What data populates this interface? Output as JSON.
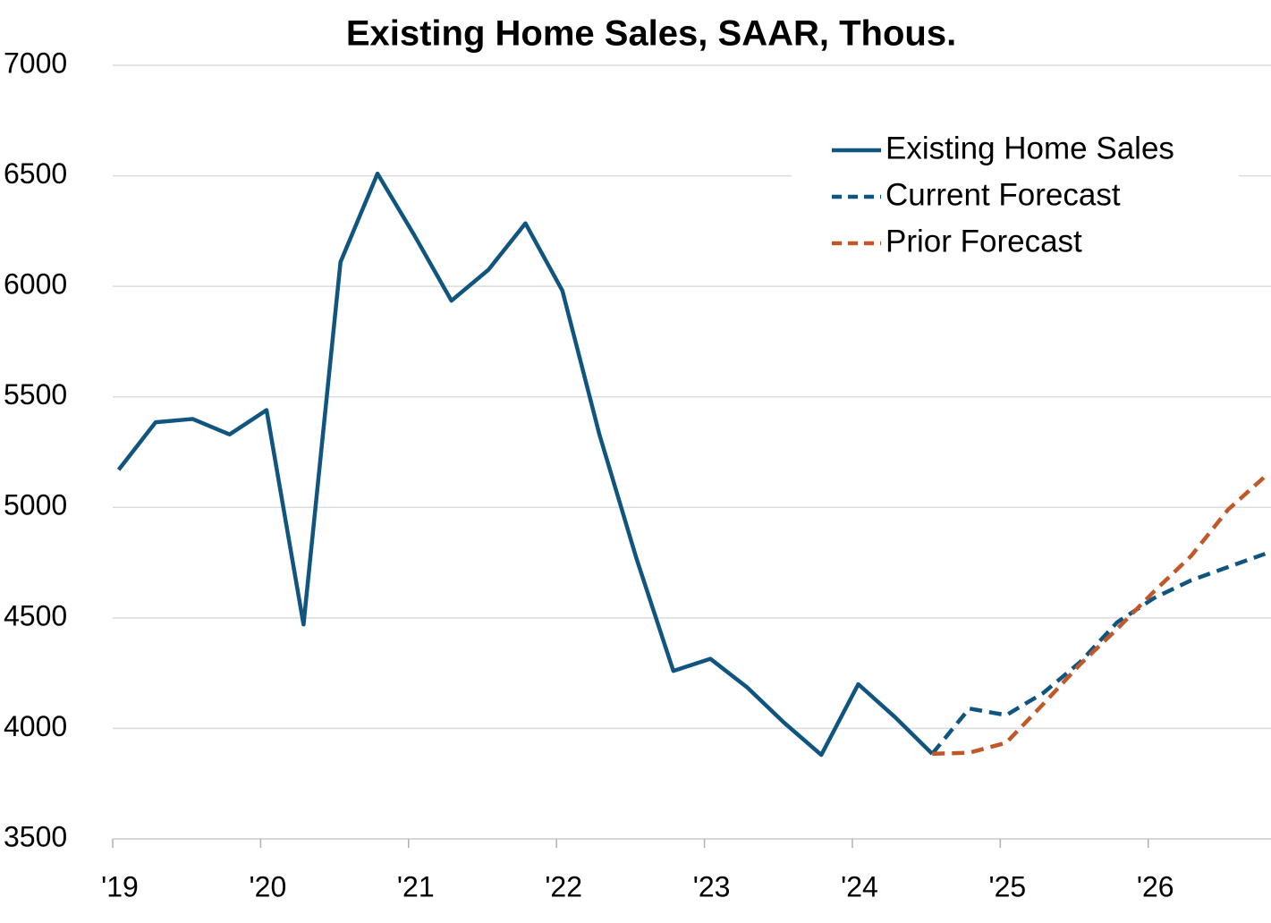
{
  "chart_data": {
    "type": "line",
    "title": "Existing Home Sales, SAAR, Thous.",
    "x": [
      2019.04,
      2019.29,
      2019.54,
      2019.79,
      2020.04,
      2020.29,
      2020.54,
      2020.79,
      2021.04,
      2021.29,
      2021.54,
      2021.79,
      2022.04,
      2022.29,
      2022.54,
      2022.79,
      2023.04,
      2023.29,
      2023.54,
      2023.79,
      2024.04,
      2024.29,
      2024.54,
      2024.79,
      2025.04,
      2025.29,
      2025.54,
      2025.79,
      2026.04,
      2026.29,
      2026.54,
      2026.79
    ],
    "series": [
      {
        "name": "Existing Home Sales",
        "color": "#0f5580",
        "dash": false,
        "values": [
          5170,
          5385,
          5400,
          5330,
          5440,
          4470,
          6110,
          6510,
          6230,
          5935,
          6075,
          6285,
          5980,
          5330,
          4770,
          4260,
          4315,
          4185,
          4025,
          3880,
          4200,
          4050,
          3885,
          null,
          null,
          null,
          null,
          null,
          null,
          null,
          null,
          null
        ]
      },
      {
        "name": "Current Forecast",
        "color": "#0f5580",
        "dash": true,
        "values": [
          null,
          null,
          null,
          null,
          null,
          null,
          null,
          null,
          null,
          null,
          null,
          null,
          null,
          null,
          null,
          null,
          null,
          null,
          null,
          null,
          null,
          null,
          3885,
          4090,
          4060,
          4160,
          4300,
          4480,
          4590,
          4670,
          4730,
          4790
        ]
      },
      {
        "name": "Prior Forecast",
        "color": "#c0582a",
        "dash": true,
        "values": [
          null,
          null,
          null,
          null,
          null,
          null,
          null,
          null,
          null,
          null,
          null,
          null,
          null,
          null,
          null,
          null,
          null,
          null,
          null,
          null,
          null,
          null,
          3885,
          3890,
          3935,
          4110,
          4290,
          4450,
          4620,
          4780,
          4990,
          5140
        ]
      }
    ],
    "xlim": [
      2019,
      2026.83
    ],
    "xticks": [
      {
        "value": 2019,
        "label": "'19"
      },
      {
        "value": 2020,
        "label": "'20"
      },
      {
        "value": 2021,
        "label": "'21"
      },
      {
        "value": 2022,
        "label": "'22"
      },
      {
        "value": 2023,
        "label": "'23"
      },
      {
        "value": 2024,
        "label": "'24"
      },
      {
        "value": 2025,
        "label": "'25"
      },
      {
        "value": 2026,
        "label": "'26"
      }
    ],
    "ylim": [
      3500,
      7000
    ],
    "yticks": [
      3500,
      4000,
      4500,
      5000,
      5500,
      6000,
      6500,
      7000
    ],
    "grid": true,
    "legend": "upper right"
  }
}
